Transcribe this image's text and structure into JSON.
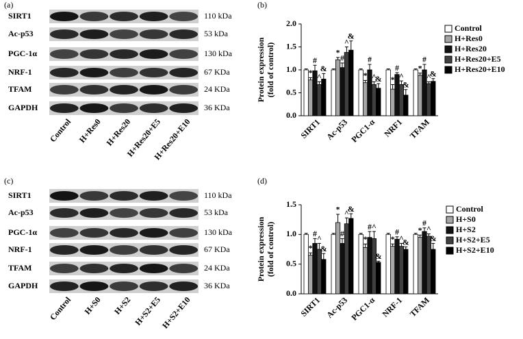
{
  "blots": [
    {
      "panel_label": "(a)",
      "rows": [
        "SIRT1",
        "Ac-p53",
        "PGC-1α",
        "NRF-1",
        "TFAM",
        "GAPDH"
      ],
      "sizes": [
        "110 kDa",
        "53 kDa",
        "130 kDa",
        "67 KDa",
        "24 KDa",
        "36 KDa"
      ],
      "lanes": [
        "Control",
        "H+Res0",
        "H+Res20",
        "H+Res20+E5",
        "H+Res20+E10"
      ]
    },
    {
      "panel_label": "(c)",
      "rows": [
        "SIRT1",
        "Ac-p53",
        "PGC-1α",
        "NRF-1",
        "TFAM",
        "GAPDH"
      ],
      "sizes": [
        "110 kDa",
        "53 kDa",
        "130 kDa",
        "67 KDa",
        "24 KDa",
        "36 KDa"
      ],
      "lanes": [
        "Control",
        "H+S0",
        "H+S2",
        "H+S2+E5",
        "H+S2+E10"
      ]
    }
  ],
  "chart_data": [
    {
      "type": "bar",
      "panel_label": "(b)",
      "ylabel": [
        "Protein expression",
        "(fold of control)"
      ],
      "categories": [
        "SIRT1",
        "Ac-p53",
        "PGC1-α",
        "NRF1",
        "TFAM"
      ],
      "ylim": [
        0,
        2
      ],
      "yticks": [
        {
          "value": 0,
          "label": "0.0"
        },
        0.5,
        {
          "value": 1,
          "label": "1.0"
        },
        1.5,
        {
          "value": 2,
          "label": "2.0"
        }
      ],
      "legend": "right",
      "series": [
        {
          "name": "Control",
          "color": "#ffffff",
          "values": [
            1.0,
            1.0,
            1.0,
            1.0,
            1.0
          ],
          "errors": [
            0.02,
            0.02,
            0.02,
            0.02,
            0.02
          ],
          "markers": [
            null,
            null,
            null,
            null,
            null
          ]
        },
        {
          "name": "H+Res0",
          "color": "#a6a6a6",
          "values": [
            0.78,
            1.22,
            0.72,
            0.58,
            0.88
          ],
          "errors": [
            0.05,
            0.05,
            0.05,
            0.1,
            0.05
          ],
          "markers": [
            "*",
            "*",
            "*",
            "*",
            "*"
          ]
        },
        {
          "name": "H+Res20",
          "color": "#111111",
          "values": [
            0.98,
            1.05,
            1.0,
            0.9,
            1.0
          ],
          "errors": [
            0.12,
            0.1,
            0.12,
            0.04,
            0.12
          ],
          "markers": [
            "#",
            "#",
            "#",
            "#",
            "#"
          ]
        },
        {
          "name": "H+Res20+E5",
          "color": "#404040",
          "values": [
            0.68,
            1.38,
            0.68,
            0.68,
            0.7
          ],
          "errors": [
            0.06,
            0.12,
            0.06,
            0.08,
            0.04
          ],
          "markers": [
            "^",
            "^",
            "^",
            "^",
            "^"
          ]
        },
        {
          "name": "H+Res20+E10",
          "color": "#000000",
          "values": [
            0.8,
            1.43,
            0.6,
            0.45,
            0.75
          ],
          "errors": [
            0.12,
            0.2,
            0.1,
            0.12,
            0.06
          ],
          "markers": [
            "&",
            "&",
            "&",
            "&",
            "&"
          ]
        }
      ]
    },
    {
      "type": "bar",
      "panel_label": "(d)",
      "ylabel": [
        "Protein expression",
        "(fold of control)"
      ],
      "categories": [
        "SIRT1",
        "Ac-p53",
        "PGC1-α",
        "NRF-1",
        "TFAM"
      ],
      "ylim": [
        0,
        1.5
      ],
      "yticks": [
        {
          "value": 0,
          "label": "0.0"
        },
        0.5,
        {
          "value": 1,
          "label": "1.0"
        },
        1.5
      ],
      "legend": "right",
      "series": [
        {
          "name": "Control",
          "color": "#ffffff",
          "values": [
            1.0,
            1.0,
            1.0,
            1.0,
            1.0
          ],
          "errors": [
            0.02,
            0.02,
            0.02,
            0.02,
            0.02
          ],
          "markers": [
            null,
            null,
            null,
            null,
            null
          ]
        },
        {
          "name": "H+S0",
          "color": "#a6a6a6",
          "values": [
            0.65,
            1.2,
            0.78,
            0.8,
            0.95
          ],
          "errors": [
            0.04,
            0.14,
            0.06,
            0.04,
            0.04
          ],
          "markers": [
            "*",
            "*",
            "*",
            "*",
            "*"
          ]
        },
        {
          "name": "H+S2",
          "color": "#111111",
          "values": [
            0.85,
            0.85,
            0.95,
            0.92,
            1.05
          ],
          "errors": [
            0.08,
            0.08,
            0.1,
            0.04,
            0.06
          ],
          "markers": [
            "#",
            "#",
            "#",
            "#",
            "#"
          ]
        },
        {
          "name": "H+S2+E5",
          "color": "#404040",
          "values": [
            0.75,
            1.18,
            0.93,
            0.8,
            0.97
          ],
          "errors": [
            0.1,
            0.1,
            0.12,
            0.05,
            0.04
          ],
          "markers": [
            "^",
            "^",
            "^",
            "^",
            "^"
          ]
        },
        {
          "name": "H+S2+E10",
          "color": "#000000",
          "values": [
            0.58,
            1.27,
            0.53,
            0.75,
            0.75
          ],
          "errors": [
            0.1,
            0.08,
            0.02,
            0.04,
            0.1
          ],
          "markers": [
            "&",
            "&",
            "&",
            "&",
            "&"
          ]
        }
      ]
    }
  ]
}
